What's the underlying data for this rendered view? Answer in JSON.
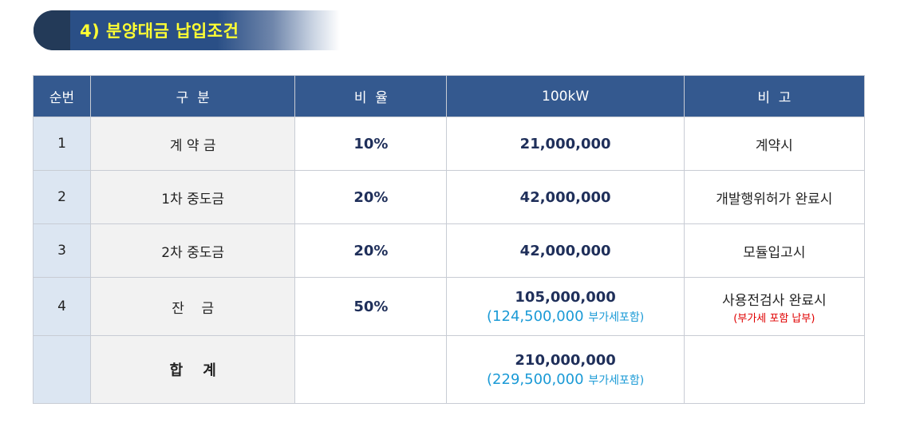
{
  "title": "4) 분양대금 납입조건",
  "headers": {
    "no": "순번",
    "gubun": "구  분",
    "rate": "비  율",
    "amount": "100kW",
    "note": "비  고"
  },
  "rows": [
    {
      "no": "1",
      "gubun": "계 약 금",
      "rate": "10%",
      "amount": "21,000,000",
      "note": "계약시"
    },
    {
      "no": "2",
      "gubun": "1차 중도금",
      "rate": "20%",
      "amount": "42,000,000",
      "note": "개발행위허가 완료시"
    },
    {
      "no": "3",
      "gubun": "2차 중도금",
      "rate": "20%",
      "amount": "42,000,000",
      "note": "모듈입고시"
    },
    {
      "no": "4",
      "gubun": "잔    금",
      "rate": "50%",
      "amount": "105,000,000",
      "amount_vat": "(124,500,000",
      "amount_vat_label": "부가세포함)",
      "note": "사용전검사 완료시",
      "note_sub": "(부가세 포함 납부)"
    }
  ],
  "total": {
    "label": "합    계",
    "amount": "210,000,000",
    "amount_vat": "(229,500,000",
    "amount_vat_label": "부가세포함)"
  }
}
